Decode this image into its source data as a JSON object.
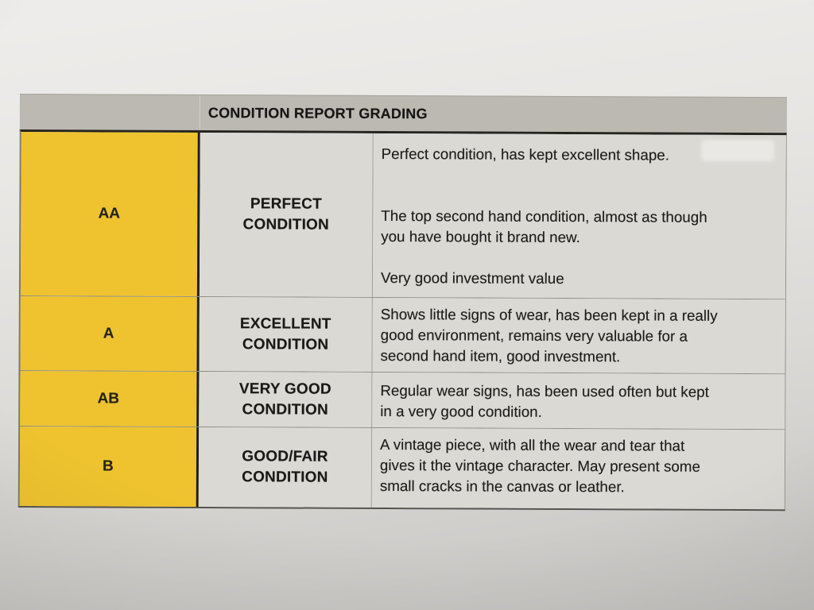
{
  "colors": {
    "grade_column_yellow": "#eec32f",
    "header_bar_gray": "#bcb9b2",
    "paper_gray": "#e7e5e2",
    "text_black": "#1b1a18"
  },
  "table": {
    "title": "CONDITION REPORT GRADING",
    "rows": [
      {
        "code": "AA",
        "name": [
          "PERFECT",
          "CONDITION"
        ],
        "description": [
          "Perfect condition, has kept excellent shape.",
          "",
          "",
          "The top second hand condition, almost as though",
          "you have bought it brand new.",
          "",
          "Very good investment value"
        ]
      },
      {
        "code": "A",
        "name": [
          "EXCELLENT",
          "CONDITION"
        ],
        "description": [
          "Shows little signs of wear, has been kept in a really",
          "good environment, remains very valuable for a",
          "second hand item, good investment."
        ]
      },
      {
        "code": "AB",
        "name": [
          "VERY GOOD",
          "CONDITION"
        ],
        "description": [
          "Regular wear signs, has been used often but kept",
          "in a very good condition."
        ]
      },
      {
        "code": "B",
        "name": [
          "GOOD/FAIR",
          "CONDITION"
        ],
        "description": [
          "A vintage piece, with all the wear and tear that",
          "gives it the vintage character. May present some",
          "small cracks in the canvas or leather."
        ]
      }
    ]
  }
}
